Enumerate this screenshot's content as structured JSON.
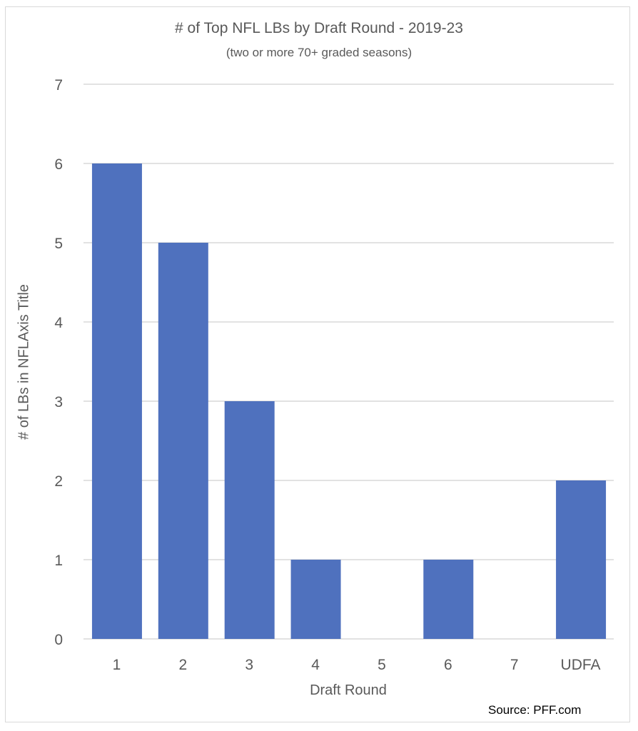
{
  "chart_data": {
    "type": "bar",
    "title": "# of Top NFL LBs by Draft Round - 2019-23",
    "subtitle": "(two or more 70+ graded seasons)",
    "xlabel": "Draft Round",
    "ylabel": "# of LBs in NFLAxis Title",
    "categories": [
      "1",
      "2",
      "3",
      "4",
      "5",
      "6",
      "7",
      "UDFA"
    ],
    "values": [
      6,
      5,
      3,
      1,
      0,
      1,
      0,
      2
    ],
    "ylim": [
      0,
      7
    ],
    "yticks": [
      0,
      1,
      2,
      3,
      4,
      5,
      6,
      7
    ],
    "grid": true,
    "legend": "none",
    "bar_color": "#4f71be",
    "source": "Source: PFF.com"
  }
}
